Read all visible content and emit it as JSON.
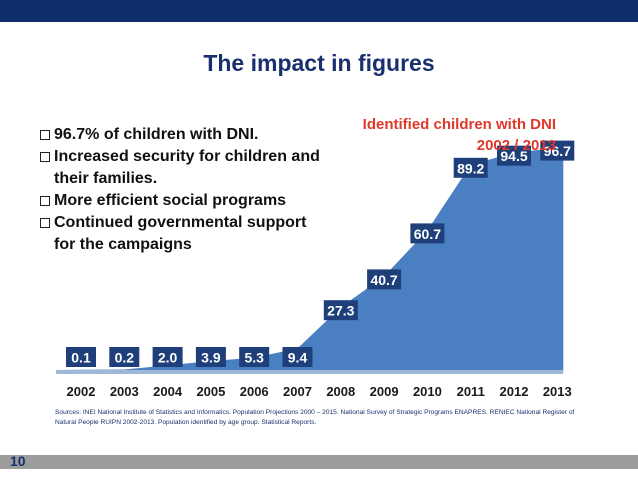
{
  "title": "The impact in figures",
  "bullets": [
    "96.7% of children with DNI.",
    "Increased security for children and their families.",
    "More efficient social programs",
    "Continued governmental support for the campaigns"
  ],
  "sources": "Sources: INEI National Institute of Statistics and Informatics. Population Projections 2000 – 2015. National Survey of Strategic Programs ENAPRES. RENIEC National Register of Natural People RUIPN 2002-2013. Population identified by age group. Statistical Reports.",
  "page_number": "10",
  "colors": {
    "area": "#4a7fc1",
    "label_box": "#1f3f7a",
    "title_red": "#e0392b",
    "header": "#0f2e6b"
  },
  "chart_data": {
    "type": "area",
    "title": "Identified children with DNI",
    "subtitle": "2002 / 2013",
    "categories": [
      "2002",
      "2003",
      "2004",
      "2005",
      "2006",
      "2007",
      "2008",
      "2009",
      "2010",
      "2011",
      "2012",
      "2013"
    ],
    "values": [
      0.1,
      0.2,
      2.0,
      3.9,
      5.3,
      9.4,
      27.3,
      40.7,
      60.7,
      89.2,
      94.5,
      96.7
    ],
    "value_labels": [
      "0.1",
      "0.2",
      "2.0",
      "3.9",
      "5.3",
      "9.4",
      "27.3",
      "40.7",
      "60.7",
      "89.2",
      "94.5",
      "96.7"
    ],
    "ylim": [
      0,
      100
    ],
    "grid": false,
    "legend": "none"
  }
}
